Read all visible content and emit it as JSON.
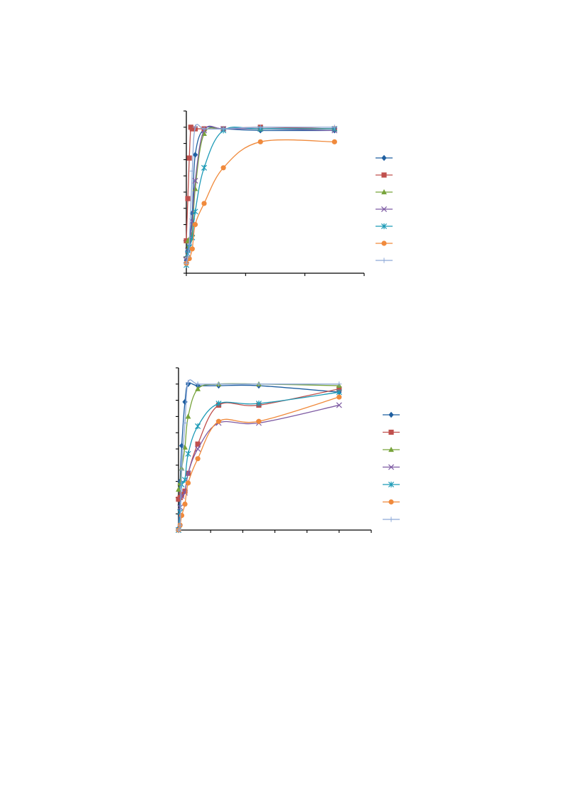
{
  "page": {
    "title": ""
  },
  "chart_data": [
    {
      "type": "line",
      "title": "",
      "xlabel": "",
      "ylabel": "",
      "xlim": [
        0,
        30
      ],
      "ylim": [
        0,
        100
      ],
      "grid": false,
      "legend_position": "right",
      "series": [
        {
          "name": "",
          "color": "#1f5fa0",
          "marker": "diamond",
          "x": [
            0,
            0.25,
            0.5,
            1,
            1.5,
            3,
            6.25,
            12.5,
            25
          ],
          "y": [
            8,
            14,
            20,
            37,
            73,
            89,
            89,
            88,
            88
          ]
        },
        {
          "name": "",
          "color": "#c0504d",
          "marker": "square",
          "x": [
            0,
            0.25,
            0.5,
            0.75,
            1,
            1.5,
            3,
            6.25,
            12.5,
            25
          ],
          "y": [
            20,
            46,
            71,
            90,
            89,
            89,
            89,
            89,
            90,
            89
          ]
        },
        {
          "name": "",
          "color": "#77a33b",
          "marker": "triangle",
          "x": [
            0,
            0.25,
            0.5,
            1,
            1.5,
            3,
            6.25,
            12.5,
            25
          ],
          "y": [
            7,
            20,
            21,
            24,
            52,
            86,
            89,
            89,
            89
          ]
        },
        {
          "name": "",
          "color": "#7e5ba3",
          "marker": "x",
          "x": [
            0,
            0.25,
            0.5,
            1,
            1.5,
            3,
            6.25,
            12.5,
            25
          ],
          "y": [
            8,
            14,
            16,
            32,
            57,
            88,
            89,
            89,
            88
          ]
        },
        {
          "name": "",
          "color": "#1c9ab6",
          "marker": "asterisk",
          "x": [
            0,
            0.25,
            0.5,
            1,
            1.5,
            3,
            6.25,
            12.5,
            25
          ],
          "y": [
            5,
            12,
            16,
            22,
            38,
            65,
            88,
            89,
            89
          ]
        },
        {
          "name": "",
          "color": "#f08a3c",
          "marker": "circle",
          "x": [
            0,
            0.5,
            1,
            1.5,
            3,
            6.25,
            12.5,
            25
          ],
          "y": [
            6,
            9,
            15,
            30,
            43,
            65,
            81,
            81
          ]
        },
        {
          "name": "",
          "color": "#8ea9d8",
          "marker": "plus",
          "x": [
            0,
            0.25,
            0.5,
            1,
            1.5,
            3,
            6.25,
            12.5,
            25
          ],
          "y": [
            6,
            10,
            18,
            63,
            90,
            89,
            89,
            90,
            90
          ]
        }
      ]
    },
    {
      "type": "line",
      "title": "",
      "xlabel": "",
      "ylabel": "",
      "xlim": [
        0,
        30
      ],
      "ylim": [
        0,
        100
      ],
      "grid": false,
      "legend_position": "right",
      "series": [
        {
          "name": "",
          "color": "#1f5fa0",
          "marker": "diamond",
          "x": [
            0,
            0.25,
            0.5,
            1,
            1.5,
            3,
            6.25,
            12.5,
            25
          ],
          "y": [
            1,
            30,
            52,
            79,
            90,
            89,
            89,
            89,
            85
          ]
        },
        {
          "name": "",
          "color": "#c0504d",
          "marker": "square",
          "x": [
            0,
            0.25,
            0.5,
            1,
            1.5,
            3,
            6.25,
            12.5,
            25
          ],
          "y": [
            19,
            20,
            22,
            24,
            35,
            53,
            77,
            77,
            87
          ]
        },
        {
          "name": "",
          "color": "#77a33b",
          "marker": "triangle",
          "x": [
            0,
            0.25,
            0.5,
            1,
            1.5,
            3,
            6.25,
            12.5,
            25
          ],
          "y": [
            25,
            29,
            38,
            51,
            70,
            87,
            90,
            90,
            89
          ]
        },
        {
          "name": "",
          "color": "#7e5ba3",
          "marker": "x",
          "x": [
            0,
            0.25,
            0.5,
            1,
            1.5,
            3,
            6.25,
            12.5,
            25
          ],
          "y": [
            0,
            14,
            21,
            23,
            35,
            50,
            66,
            66,
            77
          ]
        },
        {
          "name": "",
          "color": "#1c9ab6",
          "marker": "asterisk",
          "x": [
            0,
            0.25,
            0.5,
            1,
            1.5,
            3,
            6.25,
            12.5,
            25
          ],
          "y": [
            0,
            11,
            28,
            31,
            47,
            64,
            78,
            78,
            85
          ]
        },
        {
          "name": "",
          "color": "#f08a3c",
          "marker": "circle",
          "x": [
            0,
            0.25,
            0.5,
            1,
            1.5,
            3,
            6.25,
            12.5,
            25
          ],
          "y": [
            0,
            3,
            9,
            16,
            29,
            44,
            67,
            67,
            82
          ]
        },
        {
          "name": "",
          "color": "#8ea9d8",
          "marker": "plus",
          "x": [
            0,
            0.25,
            0.5,
            1,
            1.5,
            3,
            6.25,
            12.5,
            25
          ],
          "y": [
            0,
            3,
            37,
            66,
            91,
            90,
            90,
            90,
            90
          ]
        }
      ]
    }
  ]
}
